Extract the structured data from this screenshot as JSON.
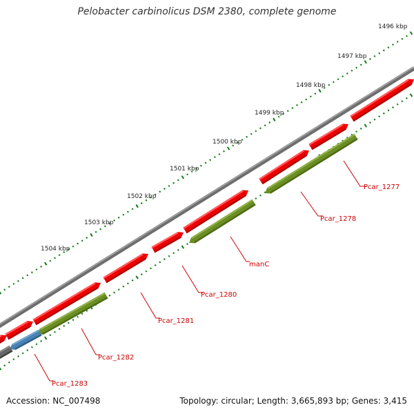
{
  "title": "Pelobacter carbinolicus DSM 2380, complete genome",
  "footer": {
    "accession": "Accession: NC_007498",
    "summary": "Topology: circular; Length: 3,665,893 bp; Genes: 3,415"
  },
  "colors": {
    "backbone": "#777777",
    "forward_gene": "#ee0000",
    "reverse_gene": "#6b8e23",
    "reverse_gene_other": "#4682b4",
    "reverse_gene_grey": "#666666",
    "ticks": "#117711",
    "labels": "#cc0000",
    "leaders": "#cc0000"
  },
  "ruler": [
    {
      "label": "1496 kbp"
    },
    {
      "label": "1497 kbp"
    },
    {
      "label": "1498 kbp"
    },
    {
      "label": "1499 kbp"
    },
    {
      "label": "1500 kbp"
    },
    {
      "label": "1501 kbp"
    },
    {
      "label": "1502 kbp"
    },
    {
      "label": "1503 kbp"
    },
    {
      "label": "1504 kbp"
    }
  ],
  "gene_labels": [
    {
      "name": "Pcar_1277"
    },
    {
      "name": "Pcar_1278"
    },
    {
      "name": "manC"
    },
    {
      "name": "Pcar_1280"
    },
    {
      "name": "Pcar_1281"
    },
    {
      "name": "Pcar_1282"
    },
    {
      "name": "Pcar_1283"
    }
  ]
}
